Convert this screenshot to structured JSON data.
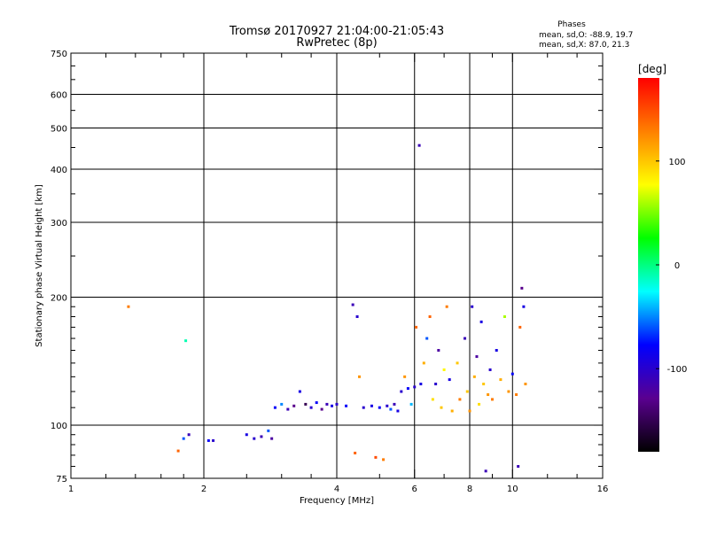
{
  "header": {
    "title": "Tromsø 20170927 21:04:00-21:05:43",
    "subtitle": "RwPretec (8p)"
  },
  "stats": {
    "heading": "Phases",
    "line_o": "mean, sd,O: -88.9, 19.7",
    "line_x": "mean, sd,X:  87.0, 21.3"
  },
  "colorbar": {
    "unit_label": "deg",
    "ticks": [
      {
        "value": 100,
        "label": "100"
      },
      {
        "value": 0,
        "label": "0"
      },
      {
        "value": -100,
        "label": "-100"
      }
    ],
    "range": [
      -180,
      180
    ],
    "stops": [
      "#000000",
      "#5a0090",
      "#0000ff",
      "#00ffff",
      "#00ff00",
      "#ffff00",
      "#ff8000",
      "#ff0000"
    ]
  },
  "chart_data": {
    "type": "scatter",
    "xlabel": "Frequency [MHz]",
    "ylabel": "Stationary phase Virtual Height [km]",
    "xscale": "log",
    "yscale": "log",
    "xlim": [
      1,
      16
    ],
    "ylim": [
      75,
      750
    ],
    "grid": true,
    "x_ticks": [
      {
        "value": 1,
        "label": "1",
        "grid": false
      },
      {
        "value": 2,
        "label": "2",
        "grid": true
      },
      {
        "value": 4,
        "label": "4",
        "grid": true
      },
      {
        "value": 6,
        "label": "6",
        "grid": true
      },
      {
        "value": 8,
        "label": "8",
        "grid": true
      },
      {
        "value": 10,
        "label": "10",
        "grid": true
      },
      {
        "value": 16,
        "label": "16",
        "grid": false
      }
    ],
    "y_ticks": [
      {
        "value": 75,
        "label": "75",
        "grid": false
      },
      {
        "value": 100,
        "label": "100",
        "grid": true
      },
      {
        "value": 200,
        "label": "200",
        "grid": true
      },
      {
        "value": 300,
        "label": "300",
        "grid": true
      },
      {
        "value": 400,
        "label": "400",
        "grid": true
      },
      {
        "value": 500,
        "label": "500",
        "grid": true
      },
      {
        "value": 600,
        "label": "600",
        "grid": true
      },
      {
        "value": 750,
        "label": "750",
        "grid": false
      }
    ],
    "x_minor_ticks": [
      1.2,
      1.4,
      1.6,
      1.8,
      2.5,
      3,
      3.5,
      5,
      7,
      9,
      12,
      14
    ],
    "y_minor_ticks": [
      80,
      85,
      90,
      95,
      110,
      120,
      130,
      140,
      150,
      160,
      170,
      180,
      190,
      250,
      350,
      450,
      550,
      650,
      700
    ],
    "points": [
      {
        "x": 1.35,
        "y": 190,
        "phase": 130
      },
      {
        "x": 1.82,
        "y": 158,
        "phase": -10
      },
      {
        "x": 1.75,
        "y": 87,
        "phase": 140
      },
      {
        "x": 1.8,
        "y": 93,
        "phase": -60
      },
      {
        "x": 1.85,
        "y": 95,
        "phase": -110
      },
      {
        "x": 2.05,
        "y": 92,
        "phase": -80
      },
      {
        "x": 2.1,
        "y": 92,
        "phase": -100
      },
      {
        "x": 2.5,
        "y": 95,
        "phase": -90
      },
      {
        "x": 2.6,
        "y": 93,
        "phase": -100
      },
      {
        "x": 2.7,
        "y": 94,
        "phase": -110
      },
      {
        "x": 2.8,
        "y": 97,
        "phase": -60
      },
      {
        "x": 2.85,
        "y": 93,
        "phase": -120
      },
      {
        "x": 2.9,
        "y": 110,
        "phase": -80
      },
      {
        "x": 3.0,
        "y": 112,
        "phase": -50
      },
      {
        "x": 3.1,
        "y": 109,
        "phase": -110
      },
      {
        "x": 3.2,
        "y": 111,
        "phase": -130
      },
      {
        "x": 3.3,
        "y": 120,
        "phase": -90
      },
      {
        "x": 3.4,
        "y": 112,
        "phase": -150
      },
      {
        "x": 3.5,
        "y": 110,
        "phase": -100
      },
      {
        "x": 3.6,
        "y": 113,
        "phase": -80
      },
      {
        "x": 3.7,
        "y": 109,
        "phase": -130
      },
      {
        "x": 3.8,
        "y": 112,
        "phase": -110
      },
      {
        "x": 3.9,
        "y": 111,
        "phase": -90
      },
      {
        "x": 4.0,
        "y": 112,
        "phase": -100
      },
      {
        "x": 4.2,
        "y": 111,
        "phase": -80
      },
      {
        "x": 4.35,
        "y": 192,
        "phase": -110
      },
      {
        "x": 4.45,
        "y": 180,
        "phase": -100
      },
      {
        "x": 4.5,
        "y": 130,
        "phase": 120
      },
      {
        "x": 4.4,
        "y": 86,
        "phase": 140
      },
      {
        "x": 4.6,
        "y": 110,
        "phase": -100
      },
      {
        "x": 4.8,
        "y": 111,
        "phase": -90
      },
      {
        "x": 4.9,
        "y": 84,
        "phase": 150
      },
      {
        "x": 5.0,
        "y": 110,
        "phase": -80
      },
      {
        "x": 5.1,
        "y": 83,
        "phase": 130
      },
      {
        "x": 5.2,
        "y": 111,
        "phase": -100
      },
      {
        "x": 5.3,
        "y": 109,
        "phase": -60
      },
      {
        "x": 5.4,
        "y": 112,
        "phase": -110
      },
      {
        "x": 5.5,
        "y": 108,
        "phase": -90
      },
      {
        "x": 5.6,
        "y": 120,
        "phase": -100
      },
      {
        "x": 5.7,
        "y": 130,
        "phase": 120
      },
      {
        "x": 5.8,
        "y": 122,
        "phase": -80
      },
      {
        "x": 5.9,
        "y": 112,
        "phase": -40
      },
      {
        "x": 6.0,
        "y": 123,
        "phase": -100
      },
      {
        "x": 6.05,
        "y": 170,
        "phase": 140
      },
      {
        "x": 6.15,
        "y": 455,
        "phase": -110
      },
      {
        "x": 6.2,
        "y": 125,
        "phase": -90
      },
      {
        "x": 6.3,
        "y": 140,
        "phase": 110
      },
      {
        "x": 6.4,
        "y": 160,
        "phase": -60
      },
      {
        "x": 6.5,
        "y": 180,
        "phase": 140
      },
      {
        "x": 6.6,
        "y": 115,
        "phase": 90
      },
      {
        "x": 6.7,
        "y": 125,
        "phase": -100
      },
      {
        "x": 6.8,
        "y": 150,
        "phase": -120
      },
      {
        "x": 6.9,
        "y": 110,
        "phase": 100
      },
      {
        "x": 7.0,
        "y": 135,
        "phase": 80
      },
      {
        "x": 7.1,
        "y": 190,
        "phase": 130
      },
      {
        "x": 7.2,
        "y": 128,
        "phase": -90
      },
      {
        "x": 7.3,
        "y": 108,
        "phase": 110
      },
      {
        "x": 7.5,
        "y": 140,
        "phase": 100
      },
      {
        "x": 7.6,
        "y": 115,
        "phase": 130
      },
      {
        "x": 7.8,
        "y": 160,
        "phase": -110
      },
      {
        "x": 7.9,
        "y": 120,
        "phase": 100
      },
      {
        "x": 8.0,
        "y": 108,
        "phase": 120
      },
      {
        "x": 8.1,
        "y": 190,
        "phase": -100
      },
      {
        "x": 8.2,
        "y": 130,
        "phase": 110
      },
      {
        "x": 8.3,
        "y": 145,
        "phase": -120
      },
      {
        "x": 8.4,
        "y": 112,
        "phase": 90
      },
      {
        "x": 8.5,
        "y": 175,
        "phase": -90
      },
      {
        "x": 8.6,
        "y": 125,
        "phase": 100
      },
      {
        "x": 8.7,
        "y": 78,
        "phase": -110
      },
      {
        "x": 8.8,
        "y": 118,
        "phase": 120
      },
      {
        "x": 8.9,
        "y": 135,
        "phase": -100
      },
      {
        "x": 9.0,
        "y": 115,
        "phase": 130
      },
      {
        "x": 9.2,
        "y": 150,
        "phase": -90
      },
      {
        "x": 9.4,
        "y": 128,
        "phase": 110
      },
      {
        "x": 9.6,
        "y": 180,
        "phase": 60
      },
      {
        "x": 9.8,
        "y": 120,
        "phase": 120
      },
      {
        "x": 10.0,
        "y": 132,
        "phase": -80
      },
      {
        "x": 10.2,
        "y": 118,
        "phase": 130
      },
      {
        "x": 10.4,
        "y": 170,
        "phase": 140
      },
      {
        "x": 10.5,
        "y": 210,
        "phase": -130
      },
      {
        "x": 10.6,
        "y": 190,
        "phase": -90
      },
      {
        "x": 10.7,
        "y": 125,
        "phase": 120
      },
      {
        "x": 10.3,
        "y": 80,
        "phase": -110
      }
    ]
  }
}
